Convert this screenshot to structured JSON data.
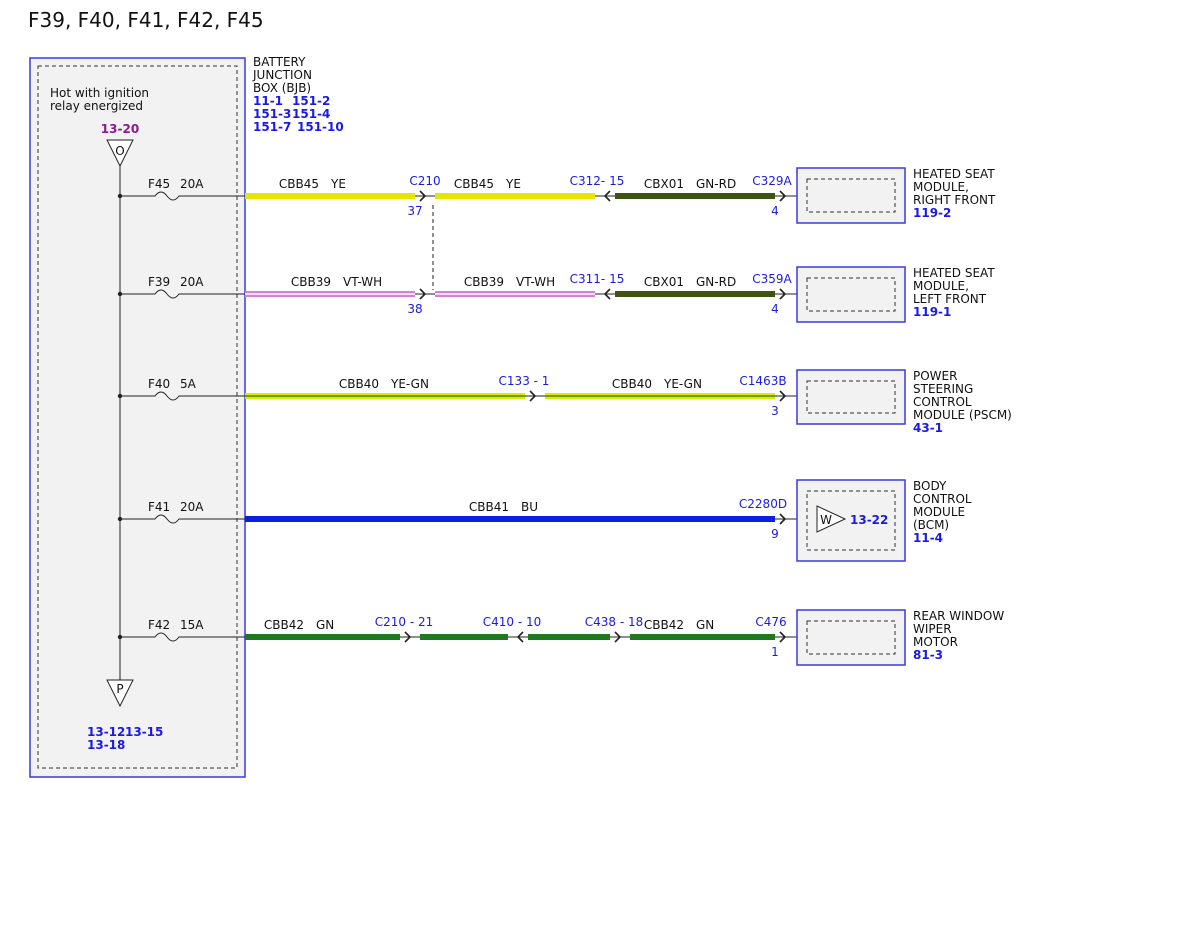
{
  "title": "F39, F40, F41, F42, F45",
  "bjb": {
    "note": [
      "Hot with ignition",
      "relay energized"
    ],
    "ref": "13-20",
    "top_symbol": "O",
    "bottom_symbol": "P",
    "bottom_refs": [
      "13-12",
      "13-15",
      "13-18"
    ],
    "label": [
      "BATTERY",
      "JUNCTION",
      "BOX (BJB)"
    ],
    "refs": [
      "11-1",
      "151-2",
      "151-3",
      "151-4",
      "151-7",
      "151-10"
    ]
  },
  "circuits": [
    {
      "fuse": "F45",
      "rating": "20A",
      "segments": [
        {
          "wire": "CBB45",
          "color_code": "YE",
          "stroke": "#e6e600"
        },
        {
          "wire": "CBB45",
          "color_code": "YE",
          "stroke": "#e6e600"
        },
        {
          "wire": "CBX01",
          "color_code": "GN-RD",
          "stroke": "#3f5410"
        }
      ],
      "connectors": [
        {
          "label": "C210",
          "pin": "37"
        },
        {
          "label": "C312- 15"
        },
        {
          "label": "C329A",
          "pin": "4"
        }
      ],
      "module": {
        "lines": [
          "HEATED SEAT",
          "MODULE,",
          "RIGHT FRONT"
        ],
        "ref": "119-2"
      }
    },
    {
      "fuse": "F39",
      "rating": "20A",
      "segments": [
        {
          "wire": "CBB39",
          "color_code": "VT-WH",
          "stroke": "#d57fd5",
          "stripe": "#ffffff"
        },
        {
          "wire": "CBB39",
          "color_code": "VT-WH",
          "stroke": "#d57fd5",
          "stripe": "#ffffff"
        },
        {
          "wire": "CBX01",
          "color_code": "GN-RD",
          "stroke": "#3f5410"
        }
      ],
      "connectors": [
        {
          "pin": "38"
        },
        {
          "label": "C311- 15"
        },
        {
          "label": "C359A",
          "pin": "4"
        }
      ],
      "module": {
        "lines": [
          "HEATED SEAT",
          "MODULE,",
          "LEFT FRONT"
        ],
        "ref": "119-1"
      }
    },
    {
      "fuse": "F40",
      "rating": "5A",
      "segments": [
        {
          "wire": "CBB40",
          "color_code": "YE-GN",
          "stroke": "#e6e600",
          "stripe": "#3a8a2a"
        },
        {
          "wire": "CBB40",
          "color_code": "YE-GN",
          "stroke": "#e6e600",
          "stripe": "#3a8a2a"
        }
      ],
      "connectors": [
        {
          "label": "C133 - 1"
        },
        {
          "label": "C1463B",
          "pin": "3"
        }
      ],
      "module": {
        "lines": [
          "POWER",
          "STEERING",
          "CONTROL",
          "MODULE (PSCM)"
        ],
        "ref": "43-1"
      }
    },
    {
      "fuse": "F41",
      "rating": "20A",
      "segments": [
        {
          "wire": "CBB41",
          "color_code": "BU",
          "stroke": "#0a1fe0"
        }
      ],
      "connectors": [
        {
          "label": "C2280D",
          "pin": "9"
        }
      ],
      "module": {
        "lines": [
          "BODY",
          "CONTROL",
          "MODULE",
          "(BCM)"
        ],
        "ref": "11-4",
        "symbol": "W",
        "symbol_ref": "13-22"
      }
    },
    {
      "fuse": "F42",
      "rating": "15A",
      "segments": [
        {
          "wire": "CBB42",
          "color_code": "GN",
          "stroke": "#1f7a1f"
        },
        {
          "stroke": "#1f7a1f"
        },
        {
          "stroke": "#1f7a1f"
        },
        {
          "wire": "CBB42",
          "color_code": "GN",
          "stroke": "#1f7a1f"
        }
      ],
      "connectors": [
        {
          "label": "C210 - 21"
        },
        {
          "label": "C410 - 10"
        },
        {
          "label": "C438 - 18"
        },
        {
          "label": "C476",
          "pin": "1"
        }
      ],
      "module": {
        "lines": [
          "REAR WINDOW",
          "WIPER",
          "MOTOR"
        ],
        "ref": "81-3"
      }
    }
  ]
}
